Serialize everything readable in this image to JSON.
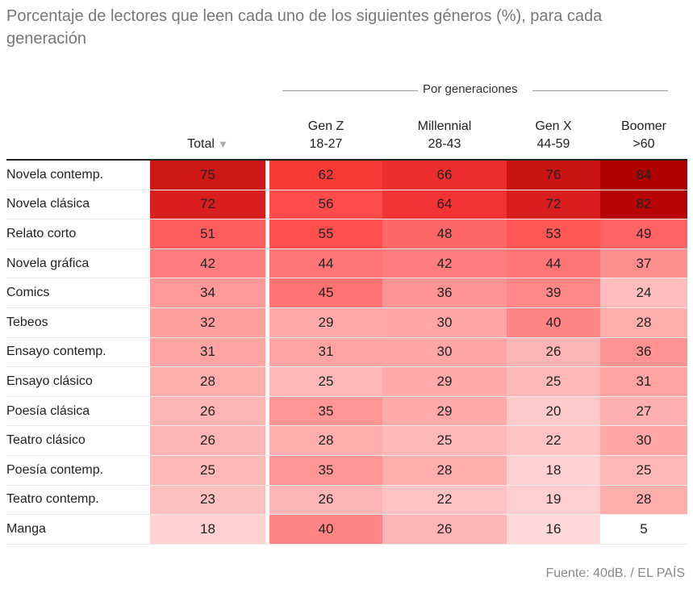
{
  "title": "Porcentaje de lectores que leen cada uno de los siguientes géneros (%), para cada generación",
  "source": "Fuente: 40dB. / EL PAÍS",
  "group_label": "Por generaciones",
  "sort_icon": "triangle-down",
  "color_scale": {
    "low": "#ffffff",
    "high": "#b00000"
  },
  "chart_data": {
    "type": "heatmap",
    "title": "Porcentaje de lectores que leen cada uno de los siguientes géneros (%), para cada generación",
    "columns": [
      {
        "label": "Total",
        "sub": ""
      },
      {
        "label": "Gen Z",
        "sub": "18-27"
      },
      {
        "label": "Millennial",
        "sub": "28-43"
      },
      {
        "label": "Gen X",
        "sub": "44-59"
      },
      {
        "label": "Boomer",
        "sub": ">60"
      }
    ],
    "rows": [
      {
        "label": "Novela contemp.",
        "values": [
          75,
          62,
          66,
          76,
          84
        ]
      },
      {
        "label": "Novela clásica",
        "values": [
          72,
          56,
          64,
          72,
          82
        ]
      },
      {
        "label": "Relato corto",
        "values": [
          51,
          55,
          48,
          53,
          49
        ]
      },
      {
        "label": "Novela gráfica",
        "values": [
          42,
          44,
          42,
          44,
          37
        ]
      },
      {
        "label": "Comics",
        "values": [
          34,
          45,
          36,
          39,
          24
        ]
      },
      {
        "label": "Tebeos",
        "values": [
          32,
          29,
          30,
          40,
          28
        ]
      },
      {
        "label": "Ensayo contemp.",
        "values": [
          31,
          31,
          30,
          26,
          36
        ]
      },
      {
        "label": "Ensayo clásico",
        "values": [
          28,
          25,
          29,
          25,
          31
        ]
      },
      {
        "label": "Poesía clásica",
        "values": [
          26,
          35,
          29,
          20,
          27
        ]
      },
      {
        "label": "Teatro clásico",
        "values": [
          26,
          28,
          25,
          22,
          30
        ]
      },
      {
        "label": "Poesía contemp.",
        "values": [
          25,
          35,
          28,
          18,
          25
        ]
      },
      {
        "label": "Teatro contemp.",
        "values": [
          23,
          26,
          22,
          19,
          28
        ]
      },
      {
        "label": "Manga",
        "values": [
          18,
          40,
          26,
          16,
          5
        ]
      }
    ]
  }
}
